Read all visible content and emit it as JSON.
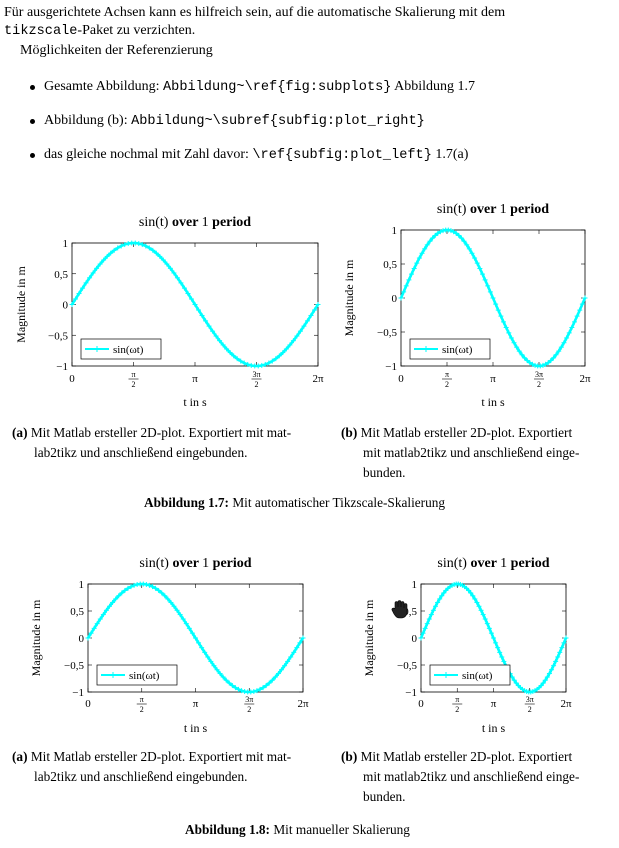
{
  "intro": {
    "line1": "Für ausgerichtete Achsen kann es hilfreich sein, auf die automatische Skalierung mit dem",
    "line2_code": "tikzscale",
    "line2_rest": "-Paket zu verzichten.",
    "line3": "Möglichkeiten der Referenzierung"
  },
  "bullets": [
    {
      "pre": "Gesamte Abbildung: ",
      "code": "Abbildung~\\ref{fig:subplots}",
      "post": " Abbildung 1.7"
    },
    {
      "pre": "Abbildung (b): ",
      "code": "Abbildung~\\subref{subfig:plot_right}",
      "post": ""
    },
    {
      "pre": "das gleiche nochmal mit Zahl davor: ",
      "code": "\\ref{subfig:plot_left}",
      "post": " 1.7(a)"
    }
  ],
  "plot_text": {
    "title_math": "sin(t)",
    "title_over": "over",
    "title_one": "1",
    "title_period": "period",
    "ylabel": "Magnitude in m",
    "xlabel": "t in s",
    "legend": "sin(ωt)",
    "yticks": [
      "1",
      "0,5",
      "0",
      "−0,5",
      "−1"
    ],
    "xticks": [
      "0",
      "π/2",
      "π",
      "3π/2",
      "2π"
    ]
  },
  "chart_data": [
    {
      "type": "line",
      "title": "sin(t) over 1 period",
      "xlabel": "t in s",
      "ylabel": "Magnitude in m",
      "xlim": [
        0,
        6.2832
      ],
      "ylim": [
        -1,
        1
      ],
      "legend": "bottom-left",
      "series": [
        {
          "name": "sin(ωt)",
          "color": "#00ffff",
          "function": "sin(x)",
          "x": [
            0,
            0.7854,
            1.5708,
            2.3562,
            3.1416,
            3.927,
            4.7124,
            5.4978,
            6.2832
          ],
          "y": [
            0,
            0.707,
            1,
            0.707,
            0,
            -0.707,
            -1,
            -0.707,
            0
          ]
        }
      ]
    },
    {
      "type": "line",
      "title": "sin(t) over 1 period",
      "xlabel": "t in s",
      "ylabel": "Magnitude in m",
      "xlim": [
        0,
        6.2832
      ],
      "ylim": [
        -1,
        1
      ],
      "legend": "bottom-left",
      "series": [
        {
          "name": "sin(ωt)",
          "color": "#00ffff",
          "function": "sin(x)",
          "x": [
            0,
            0.7854,
            1.5708,
            2.3562,
            3.1416,
            3.927,
            4.7124,
            5.4978,
            6.2832
          ],
          "y": [
            0,
            0.707,
            1,
            0.707,
            0,
            -0.707,
            -1,
            -0.707,
            0
          ]
        }
      ]
    },
    {
      "type": "line",
      "title": "sin(t) over 1 period",
      "xlabel": "t in s",
      "ylabel": "Magnitude in m",
      "xlim": [
        0,
        6.2832
      ],
      "ylim": [
        -1,
        1
      ],
      "legend": "bottom-left",
      "series": [
        {
          "name": "sin(ωt)",
          "color": "#00ffff",
          "function": "sin(x)",
          "x": [
            0,
            0.7854,
            1.5708,
            2.3562,
            3.1416,
            3.927,
            4.7124,
            5.4978,
            6.2832
          ],
          "y": [
            0,
            0.707,
            1,
            0.707,
            0,
            -0.707,
            -1,
            -0.707,
            0
          ]
        }
      ]
    },
    {
      "type": "line",
      "title": "sin(t) over 1 period",
      "xlabel": "t in s",
      "ylabel": "Magnitude in m",
      "xlim": [
        0,
        6.2832
      ],
      "ylim": [
        -1,
        1
      ],
      "legend": "bottom-left",
      "series": [
        {
          "name": "sin(ωt)",
          "color": "#00ffff",
          "function": "sin(x)",
          "x": [
            0,
            0.7854,
            1.5708,
            2.3562,
            3.1416,
            3.927,
            4.7124,
            5.4978,
            6.2832
          ],
          "y": [
            0,
            0.707,
            1,
            0.707,
            0,
            -0.707,
            -1,
            -0.707,
            0
          ]
        }
      ]
    }
  ],
  "captions": {
    "a_label": "(a)",
    "a_line1": "Mit Matlab ersteller 2D-plot. Exportiert mit mat-",
    "a_line2": "lab2tikz und anschließend eingebunden.",
    "b_label": "(b)",
    "b_line1": "Mit Matlab ersteller 2D-plot. Exportiert",
    "b_line2": "mit matlab2tikz und anschließend einge-",
    "b_line3": "bunden.",
    "fig17_label": "Abbildung 1.7:",
    "fig17_text": " Mit automatischer Tikzscale-Skalierung",
    "fig18_label": "Abbildung 1.8:",
    "fig18_text": " Mit manueller Skalierung"
  },
  "icons": {
    "cursor": "hand-cursor-icon"
  }
}
